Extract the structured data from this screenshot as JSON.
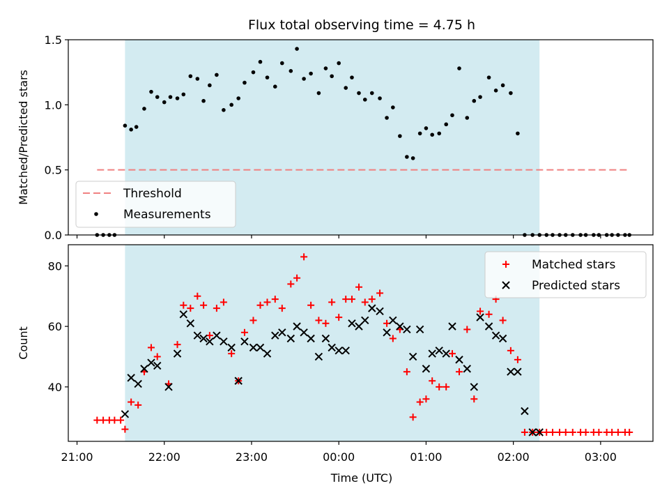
{
  "chart_data": {
    "title": "Flux total observing time = 4.75 h",
    "x_label": "Time (UTC)",
    "x_tick_labels": [
      "21:00",
      "22:00",
      "23:00",
      "00:00",
      "01:00",
      "02:00",
      "03:00"
    ],
    "x_tick_hours": [
      21,
      22,
      23,
      24,
      25,
      26,
      27
    ],
    "x_range_hours": [
      20.9,
      27.6
    ],
    "observing_window_hours": [
      21.55,
      26.3
    ],
    "shade_color": "#d3ebf1",
    "panels": [
      {
        "type": "scatter",
        "y_label": "Matched/Predicted stars",
        "y_range": [
          0,
          1.5
        ],
        "y_ticks": [
          0.0,
          0.5,
          1.0,
          1.5
        ],
        "y_tick_labels": [
          "0.0",
          "0.5",
          "1.0",
          "1.5"
        ],
        "legend_position": "lower-left",
        "threshold": {
          "name": "Threshold",
          "value": 0.5,
          "x_range": [
            21.23,
            27.33
          ],
          "color": "#f08080"
        },
        "series": [
          {
            "name": "Measurements",
            "marker": "dot",
            "color": "#000000",
            "x": [
              21.23,
              21.3,
              21.37,
              21.43,
              21.55,
              21.62,
              21.68,
              21.77,
              21.85,
              21.92,
              22.0,
              22.07,
              22.15,
              22.22,
              22.3,
              22.38,
              22.45,
              22.52,
              22.6,
              22.68,
              22.77,
              22.85,
              22.92,
              23.02,
              23.1,
              23.18,
              23.27,
              23.35,
              23.45,
              23.52,
              23.6,
              23.68,
              23.77,
              23.85,
              23.92,
              24.0,
              24.08,
              24.15,
              24.23,
              24.3,
              24.38,
              24.47,
              24.55,
              24.62,
              24.7,
              24.78,
              24.85,
              24.93,
              25.0,
              25.07,
              25.15,
              25.23,
              25.3,
              25.38,
              25.47,
              25.55,
              25.62,
              25.72,
              25.8,
              25.88,
              25.97,
              26.05,
              26.13,
              26.22,
              26.3,
              26.38,
              26.45,
              26.53,
              26.6,
              26.68,
              26.77,
              26.83,
              26.92,
              26.98,
              27.07,
              27.13,
              27.2,
              27.28,
              27.33
            ],
            "y": [
              0,
              0,
              0,
              0,
              0.84,
              0.81,
              0.83,
              0.97,
              1.1,
              1.06,
              1.02,
              1.06,
              1.05,
              1.08,
              1.22,
              1.2,
              1.03,
              1.15,
              1.23,
              0.96,
              1.0,
              1.05,
              1.17,
              1.25,
              1.33,
              1.21,
              1.14,
              1.32,
              1.26,
              1.43,
              1.2,
              1.24,
              1.09,
              1.28,
              1.22,
              1.32,
              1.13,
              1.21,
              1.09,
              1.04,
              1.09,
              1.05,
              0.9,
              0.98,
              0.76,
              0.6,
              0.59,
              0.78,
              0.82,
              0.77,
              0.78,
              0.85,
              0.92,
              1.28,
              0.9,
              1.03,
              1.06,
              1.21,
              1.11,
              1.15,
              1.09,
              0.78,
              0,
              0,
              0,
              0,
              0,
              0,
              0,
              0,
              0,
              0,
              0,
              0,
              0,
              0,
              0,
              0,
              0
            ]
          }
        ]
      },
      {
        "type": "scatter",
        "y_label": "Count",
        "y_range": [
          22,
          87
        ],
        "y_ticks": [
          40,
          60,
          80
        ],
        "y_tick_labels": [
          "40",
          "60",
          "80"
        ],
        "legend_position": "upper-right",
        "series": [
          {
            "name": "Matched stars",
            "marker": "plus",
            "color": "#ff0000",
            "x": [
              21.23,
              21.3,
              21.37,
              21.43,
              21.5,
              21.55,
              21.62,
              21.7,
              21.77,
              21.85,
              21.92,
              22.05,
              22.15,
              22.22,
              22.3,
              22.38,
              22.45,
              22.52,
              22.6,
              22.68,
              22.77,
              22.85,
              22.92,
              23.02,
              23.1,
              23.18,
              23.27,
              23.35,
              23.45,
              23.52,
              23.6,
              23.68,
              23.77,
              23.85,
              23.92,
              24.0,
              24.08,
              24.15,
              24.23,
              24.3,
              24.38,
              24.47,
              24.55,
              24.62,
              24.7,
              24.78,
              24.85,
              24.93,
              25.0,
              25.07,
              25.15,
              25.23,
              25.3,
              25.38,
              25.47,
              25.55,
              25.62,
              25.72,
              25.8,
              25.88,
              25.97,
              26.05,
              26.13,
              26.22,
              26.3,
              26.38,
              26.45,
              26.53,
              26.6,
              26.68,
              26.77,
              26.83,
              26.92,
              26.98,
              27.07,
              27.13,
              27.2,
              27.28,
              27.33
            ],
            "y": [
              29,
              29,
              29,
              29,
              29,
              26,
              35,
              34,
              45,
              53,
              50,
              41,
              54,
              67,
              66,
              70,
              67,
              57,
              66,
              68,
              51,
              42,
              58,
              62,
              67,
              68,
              69,
              66,
              74,
              76,
              83,
              67,
              62,
              61,
              68,
              63,
              69,
              69,
              73,
              68,
              69,
              71,
              61,
              56,
              59,
              45,
              30,
              35,
              36,
              42,
              40,
              40,
              51,
              45,
              59,
              36,
              65,
              64,
              69,
              62,
              52,
              49,
              25,
              25,
              25,
              25,
              25,
              25,
              25,
              25,
              25,
              25,
              25,
              25,
              25,
              25,
              25,
              25,
              25
            ]
          },
          {
            "name": "Predicted stars",
            "marker": "x",
            "color": "#000000",
            "x": [
              21.55,
              21.62,
              21.7,
              21.77,
              21.85,
              21.92,
              22.05,
              22.15,
              22.22,
              22.3,
              22.38,
              22.45,
              22.52,
              22.6,
              22.68,
              22.77,
              22.85,
              22.92,
              23.02,
              23.1,
              23.18,
              23.27,
              23.35,
              23.45,
              23.52,
              23.6,
              23.68,
              23.77,
              23.85,
              23.92,
              24.0,
              24.08,
              24.15,
              24.23,
              24.3,
              24.38,
              24.47,
              24.55,
              24.62,
              24.7,
              24.78,
              24.85,
              24.93,
              25.0,
              25.07,
              25.15,
              25.23,
              25.3,
              25.38,
              25.47,
              25.55,
              25.62,
              25.72,
              25.8,
              25.88,
              25.97,
              26.05,
              26.13,
              26.22,
              26.3
            ],
            "y": [
              31,
              43,
              41,
              46,
              48,
              47,
              40,
              51,
              64,
              61,
              57,
              56,
              55,
              57,
              55,
              53,
              42,
              55,
              53,
              53,
              51,
              57,
              58,
              56,
              60,
              58,
              56,
              50,
              56,
              53,
              52,
              52,
              61,
              60,
              62,
              66,
              65,
              58,
              62,
              60,
              59,
              50,
              59,
              46,
              51,
              52,
              51,
              60,
              49,
              46,
              40,
              63,
              60,
              57,
              56,
              45,
              45,
              32,
              25,
              25
            ]
          }
        ]
      }
    ]
  }
}
